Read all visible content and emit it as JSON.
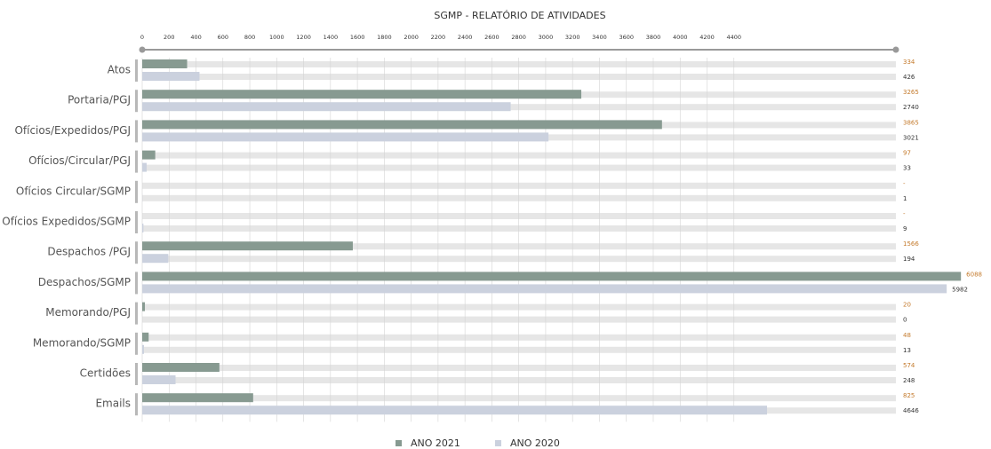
{
  "chart_data": {
    "type": "hbar",
    "title": "SGMP - RELATÓRIO DE ATIVIDADES",
    "categories": [
      "Atos",
      "Portaria/PGJ",
      "Ofícios/Expedidos/PGJ",
      "Ofícios/Circular/PGJ",
      "Ofícios Circular/SGMP",
      "Ofícios Expedidos/SGMP",
      "Despachos /PGJ",
      "Despachos/SGMP",
      "Memorando/PGJ",
      "Memorando/SGMP",
      "Certidões",
      "Emails"
    ],
    "series": [
      {
        "name": "ANO 2021",
        "color": "#879a91",
        "label_color": "#c47a2c",
        "values": [
          334,
          3265,
          3865,
          97,
          null,
          null,
          1566,
          6088,
          20,
          48,
          574,
          825
        ],
        "value_labels": [
          "334",
          "3265",
          "3865",
          "97",
          "-",
          "-",
          "1566",
          "6088",
          "20",
          "48",
          "574",
          "825"
        ]
      },
      {
        "name": "ANO 2020",
        "color": "#cbd1de",
        "label_color": "#333333",
        "values": [
          426,
          2740,
          3021,
          33,
          1,
          9,
          194,
          5982,
          0,
          13,
          248,
          4646
        ]
      }
    ],
    "xlim": [
      0,
      6100
    ],
    "xticks": [
      0,
      200,
      400,
      600,
      800,
      1000,
      1200,
      1400,
      1600,
      1800,
      2000,
      2200,
      2400,
      2600,
      2800,
      3000,
      3200,
      3400,
      3600,
      3800,
      4000,
      4200,
      4400
    ],
    "grid": true,
    "legend": "bottom"
  }
}
